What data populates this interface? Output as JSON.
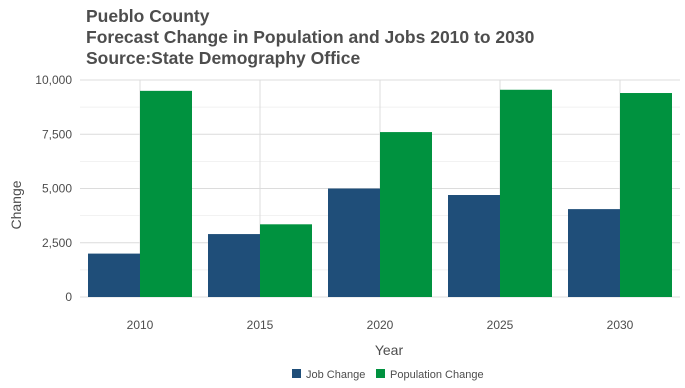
{
  "chart_data": {
    "type": "bar",
    "title": "Pueblo County",
    "subtitle": "Forecast Change in Population and Jobs 2010 to 2030",
    "source": "Source:State Demography Office",
    "xlabel": "Year",
    "ylabel": "Change",
    "categories": [
      "2010",
      "2015",
      "2020",
      "2025",
      "2030"
    ],
    "series": [
      {
        "name": "Job Change",
        "color": "#1f4e79",
        "values": [
          2000,
          2900,
          5000,
          4700,
          4050
        ]
      },
      {
        "name": "Population Change",
        "color": "#00923f",
        "values": [
          9500,
          3350,
          7600,
          9550,
          9400
        ]
      }
    ],
    "ylim": [
      0,
      10000
    ],
    "yticks": [
      0,
      2500,
      5000,
      7500,
      10000
    ],
    "ytick_labels": [
      "0",
      "2,500",
      "5,000",
      "7,500",
      "10,000"
    ],
    "grid": true,
    "legend_position": "bottom"
  }
}
